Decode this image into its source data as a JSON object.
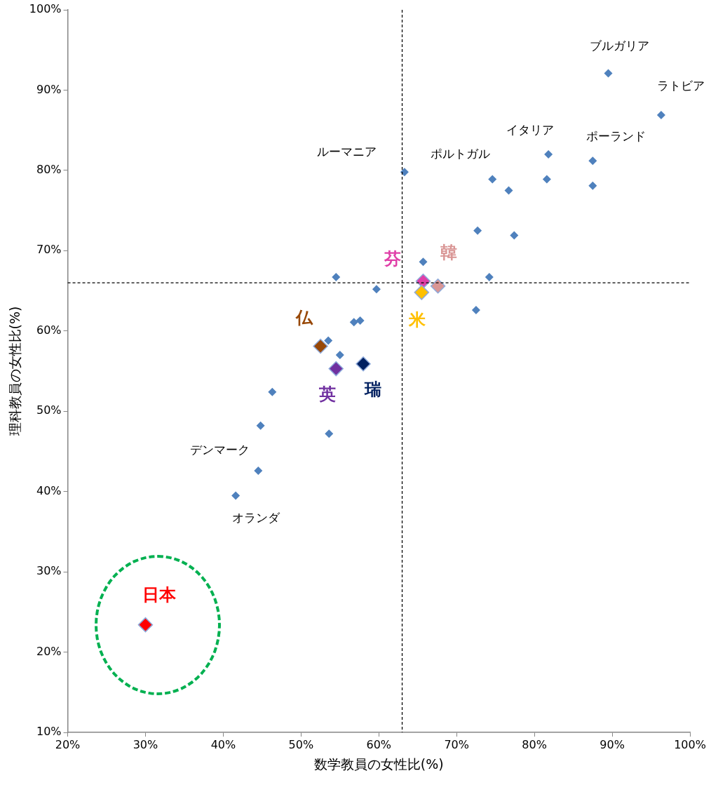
{
  "chart_data": {
    "type": "scatter",
    "xlabel": "数学教員の女性比(%)",
    "ylabel": "理科教員の女性比(%)",
    "xlim": [
      20,
      100
    ],
    "ylim": [
      10,
      100
    ],
    "xticks": [
      {
        "value": 20,
        "label": "20%"
      },
      {
        "value": 30,
        "label": "30%"
      },
      {
        "value": 40,
        "label": "40%"
      },
      {
        "value": 50,
        "label": "50%"
      },
      {
        "value": 60,
        "label": "60%"
      },
      {
        "value": 70,
        "label": "70%"
      },
      {
        "value": 80,
        "label": "80%"
      },
      {
        "value": 90,
        "label": "90%"
      },
      {
        "value": 100,
        "label": "100%"
      }
    ],
    "yticks": [
      {
        "value": 10,
        "label": "10%"
      },
      {
        "value": 20,
        "label": "20%"
      },
      {
        "value": 30,
        "label": "30%"
      },
      {
        "value": 40,
        "label": "40%"
      },
      {
        "value": 50,
        "label": "50%"
      },
      {
        "value": 60,
        "label": "60%"
      },
      {
        "value": 70,
        "label": "70%"
      },
      {
        "value": 80,
        "label": "80%"
      },
      {
        "value": 90,
        "label": "90%"
      },
      {
        "value": 100,
        "label": "100%"
      }
    ],
    "grid": false,
    "legend": false,
    "marker": "diamond",
    "ref_lines": [
      {
        "axis": "x",
        "value": 63,
        "color": "#000000",
        "line_style": "dashed"
      },
      {
        "axis": "y",
        "value": 66,
        "color": "#000000",
        "line_style": "dashed"
      }
    ],
    "series": [
      {
        "color": "#4f81bd",
        "x": [
          89.5,
          96.3,
          81.8,
          87.5,
          63.3,
          74.6,
          76.7,
          81.6,
          87.5,
          72.7,
          77.4,
          65.7,
          74.2,
          72.5,
          59.7,
          54.5,
          56.8,
          57.6,
          53.5,
          55.0,
          46.3,
          44.8,
          53.6,
          44.5,
          41.6
        ],
        "values": [
          92.1,
          86.9,
          82.0,
          81.2,
          79.8,
          78.9,
          77.5,
          78.9,
          78.1,
          72.5,
          71.9,
          68.6,
          66.7,
          62.6,
          65.2,
          66.7,
          61.1,
          61.3,
          58.8,
          57.0,
          52.4,
          48.2,
          47.2,
          42.6,
          39.5
        ]
      },
      {
        "name": "日本",
        "color": "#ff0000",
        "x": [
          30.0
        ],
        "values": [
          23.4
        ]
      },
      {
        "name": "仏",
        "color": "#984807",
        "x": [
          52.5
        ],
        "values": [
          58.1
        ]
      },
      {
        "name": "英",
        "color": "#7030a0",
        "x": [
          54.5
        ],
        "values": [
          55.3
        ]
      },
      {
        "name": "瑞",
        "color": "#002060",
        "x": [
          58.0
        ],
        "values": [
          55.9
        ]
      },
      {
        "name": "芬",
        "color": "#e03fa8",
        "x": [
          65.7
        ],
        "values": [
          66.2
        ]
      },
      {
        "name": "韓",
        "color": "#d99594",
        "x": [
          67.6
        ],
        "values": [
          65.6
        ]
      },
      {
        "name": "米",
        "color": "#ffc000",
        "x": [
          65.5
        ],
        "values": [
          64.8
        ]
      }
    ],
    "annotations": [
      {
        "text": "ブルガリア",
        "x": 89.5,
        "y": 92.1
      },
      {
        "text": "ラトビア",
        "x": 96.3,
        "y": 86.9
      },
      {
        "text": "イタリア",
        "x": 81.8,
        "y": 82.0
      },
      {
        "text": "ポーランド",
        "x": 87.5,
        "y": 81.2
      },
      {
        "text": "ルーマニア",
        "x": 63.3,
        "y": 79.8
      },
      {
        "text": "ポルトガル",
        "x": 74.6,
        "y": 78.9
      },
      {
        "text": "デンマーク",
        "x": 44.5,
        "y": 42.6
      },
      {
        "text": "オランダ",
        "x": 41.6,
        "y": 39.5
      }
    ]
  }
}
